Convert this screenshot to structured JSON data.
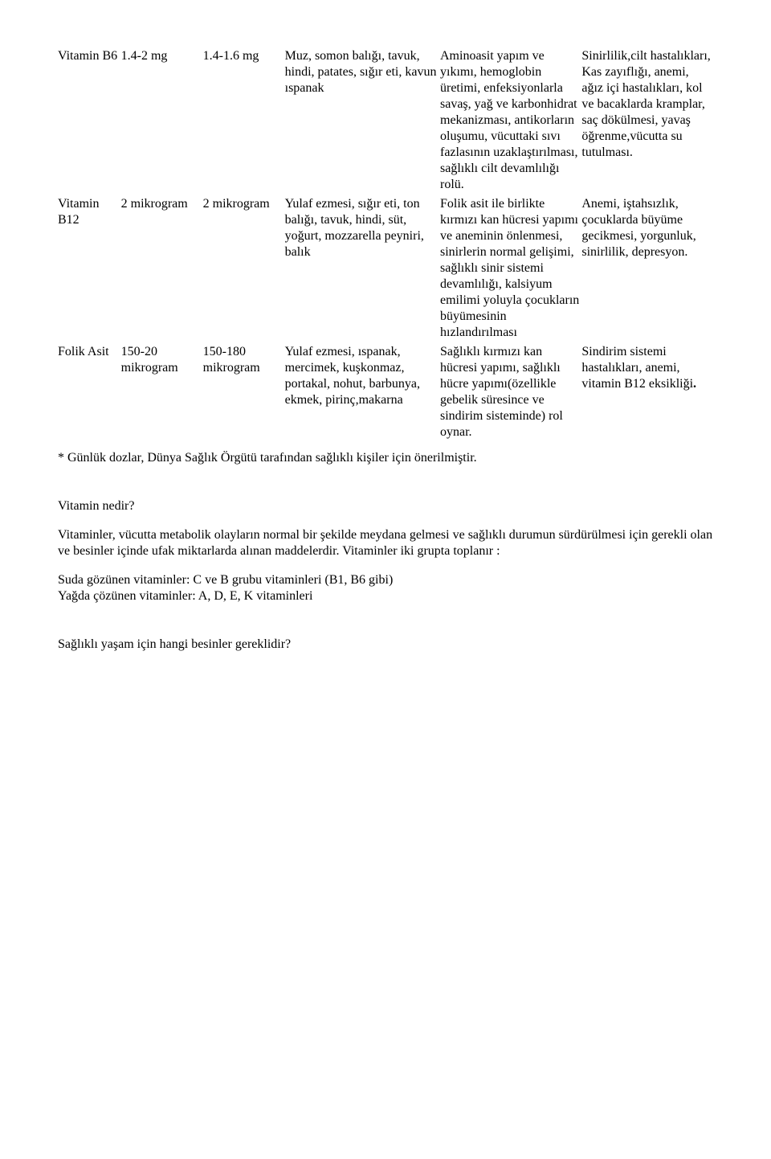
{
  "table": {
    "rows": [
      {
        "name": "Vitamin B6",
        "dose1": "1.4-2 mg",
        "dose2": "1.4-1.6 mg",
        "sources": "Muz, somon balığı, tavuk, hindi, patates, sığır eti, kavun ıspanak",
        "function": "Aminoasit yapım ve yıkımı, hemoglobin üretimi, enfeksiyonlarla savaş, yağ ve karbonhidrat mekanizması, antikorların oluşumu, vücuttaki sıvı fazlasının uzaklaştırılması, sağlıklı cilt devamlılığı rolü.",
        "deficiency": "Sinirlilik,cilt hastalıkları, Kas zayıflığı, anemi, ağız içi hastalıkları, kol ve bacaklarda kramplar, saç dökülmesi, yavaş öğrenme,vücutta su tutulması."
      },
      {
        "name": "Vitamin B12",
        "dose1": "2 mikrogram",
        "dose2": "2 mikrogram",
        "sources": "Yulaf ezmesi, sığır eti, ton balığı, tavuk, hindi, süt, yoğurt, mozzarella peyniri, balık",
        "function": "Folik asit ile birlikte kırmızı kan hücresi yapımı ve aneminin önlenmesi, sinirlerin normal gelişimi, sağlıklı sinir sistemi devamlılığı, kalsiyum emilimi yoluyla çocukların büyümesinin hızlandırılması",
        "deficiency": "Anemi, iştahsızlık, çocuklarda büyüme gecikmesi, yorgunluk, sinirlilik, depresyon."
      },
      {
        "name": "Folik Asit",
        "dose1": "150-20 mikrogram",
        "dose2": "150-180 mikrogram",
        "sources": "Yulaf ezmesi, ıspanak, mercimek, kuşkonmaz, portakal, nohut, barbunya, ekmek, pirinç,makarna",
        "function": "Sağlıklı kırmızı kan hücresi yapımı, sağlıklı hücre yapımı(özellikle gebelik süresince ve sindirim sisteminde) rol oynar.",
        "deficiency_pre": "Sindirim sistemi hastalıkları, anemi, vitamin B12 eksikliği",
        "deficiency_dot": "."
      }
    ],
    "footnote": "* Günlük dozlar, Dünya Sağlık Örgütü tarafından sağlıklı kişiler için önerilmiştir."
  },
  "body": {
    "heading1": "Vitamin nedir?",
    "para1": "Vitaminler, vücutta metabolik olayların normal bir şekilde meydana gelmesi ve sağlıklı durumun sürdürülmesi için gerekli olan ve besinler içinde ufak miktarlarda alınan maddelerdir. Vitaminler iki grupta toplanır :",
    "list1": "Suda gözünen vitaminler: C ve B grubu vitaminleri (B1, B6 gibi)",
    "list2": "Yağda çözünen vitaminler: A, D, E, K vitaminleri",
    "heading2": "Sağlıklı yaşam için hangi besinler gereklidir?"
  }
}
